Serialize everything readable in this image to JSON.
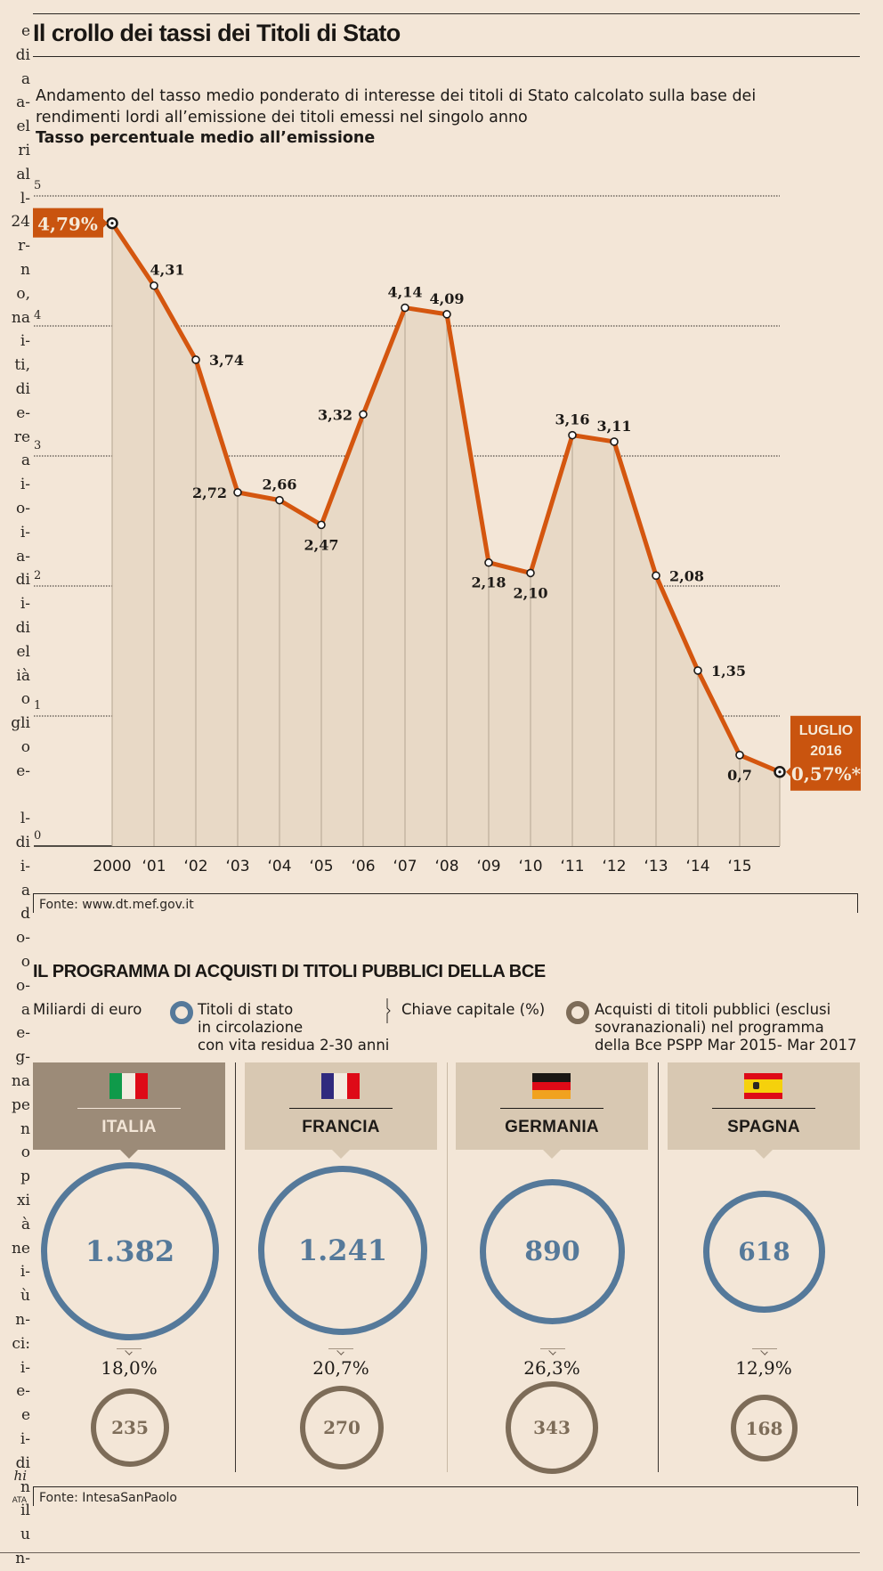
{
  "side_column": {
    "text_lines": [
      "e",
      "di",
      "a",
      "a-",
      "el",
      "ri",
      "al",
      "l-",
      "24",
      "r-",
      "n",
      "o,",
      "na",
      "i-",
      "ti,",
      "di",
      "e-",
      "re",
      "a",
      "i-",
      "o-",
      "i-",
      "a-",
      "di",
      "i-",
      "di",
      "el",
      "ià",
      "o",
      "gli",
      "o",
      "e-",
      "",
      "l-",
      "di",
      "i-",
      "a",
      "d",
      "o-",
      "o",
      "o-",
      "a",
      "e-",
      "g-",
      "na",
      "pe",
      "n",
      "o",
      "p",
      "xi",
      "à",
      "ne",
      "i-",
      "ù",
      "n-",
      "ci:",
      "i-",
      "e-",
      "e",
      "i-",
      "di",
      "n",
      "il",
      "u",
      "n-"
    ],
    "footer_italic": "hi",
    "footer_small": "ATA"
  },
  "header": {
    "title": "Il crollo dei tassi dei Titoli di Stato",
    "subtitle": "Andamento del tasso medio ponderato di interesse dei titoli di Stato calcolato sulla base dei rendimenti lordi all’emissione dei titoli emessi nel singolo anno",
    "unit_label": "Tasso percentuale medio all’emissione"
  },
  "chart_data": {
    "type": "area",
    "title": "Il crollo dei tassi dei Titoli di Stato",
    "subtitle": "Andamento del tasso medio ponderato di interesse dei titoli di Stato calcolato sulla base dei rendimenti lordi all’emissione dei titoli emessi nel singolo anno",
    "ylabel": "Tasso percentuale medio all’emissione",
    "xlabel": "",
    "ylim": [
      0,
      5
    ],
    "yticks": [
      0,
      1,
      2,
      3,
      4,
      5
    ],
    "grid": true,
    "categories": [
      "2000",
      "‘01",
      "‘02",
      "‘03",
      "‘04",
      "‘05",
      "‘06",
      "‘07",
      "‘08",
      "‘09",
      "‘10",
      "‘11",
      "‘12",
      "‘13",
      "‘14",
      "‘15",
      ""
    ],
    "values": [
      4.79,
      4.31,
      3.74,
      2.72,
      2.66,
      2.47,
      3.32,
      4.14,
      4.09,
      2.18,
      2.1,
      3.16,
      3.11,
      2.08,
      1.35,
      0.7,
      0.57
    ],
    "data_labels": [
      "4,79%",
      "4,31",
      "3,74",
      "2,72",
      "2,66",
      "2,47",
      "3,32",
      "4,14",
      "4,09",
      "2,18",
      "2,10",
      "3,16",
      "3,11",
      "2,08",
      "1,35",
      "0,7",
      "0,57%*"
    ],
    "label_side": [
      "callout-left",
      "above",
      "right",
      "left",
      "above",
      "below",
      "left",
      "above",
      "above",
      "below",
      "below",
      "above",
      "above",
      "right",
      "right",
      "below",
      "callout-right"
    ],
    "end_callout": {
      "line1": "LUGLIO",
      "line2": "2016",
      "value": "0,57%*"
    },
    "colors": {
      "line": "#d4560f",
      "area": "#e8d9c6",
      "callout": "#c9540f",
      "grid": "#2a2622"
    }
  },
  "chart_source": "Fonte: www.dt.mef.gov.it",
  "bce": {
    "title": "IL PROGRAMMA DI ACQUISTI DI TITOLI PUBBLICI DELLA BCE",
    "unit": "Miliardi di euro",
    "legend": {
      "outstanding": "Titoli di stato\nin circolazione\ncon vita residua 2-30 anni",
      "capital_key": "Chiave capitale (%)",
      "purchases": "Acquisti di titoli pubblici (esclusi\nsovranazionali) nel programma\ndella Bce PSPP Mar 2015- Mar 2017"
    },
    "colors": {
      "outstanding": "#55799a",
      "purchases": "#7d6c58"
    },
    "countries": [
      {
        "name": "ITALIA",
        "flag": "it",
        "outstanding": "1.382",
        "outstanding_value": 1382,
        "capital_key": "18,0%",
        "purchases": "235",
        "purchases_value": 235
      },
      {
        "name": "FRANCIA",
        "flag": "fr",
        "outstanding": "1.241",
        "outstanding_value": 1241,
        "capital_key": "20,7%",
        "purchases": "270",
        "purchases_value": 270
      },
      {
        "name": "GERMANIA",
        "flag": "de",
        "outstanding": "890",
        "outstanding_value": 890,
        "capital_key": "26,3%",
        "purchases": "343",
        "purchases_value": 343
      },
      {
        "name": "SPAGNA",
        "flag": "es",
        "outstanding": "618",
        "outstanding_value": 618,
        "capital_key": "12,9%",
        "purchases": "168",
        "purchases_value": 168
      }
    ],
    "source": "Fonte: IntesaSanPaolo"
  }
}
